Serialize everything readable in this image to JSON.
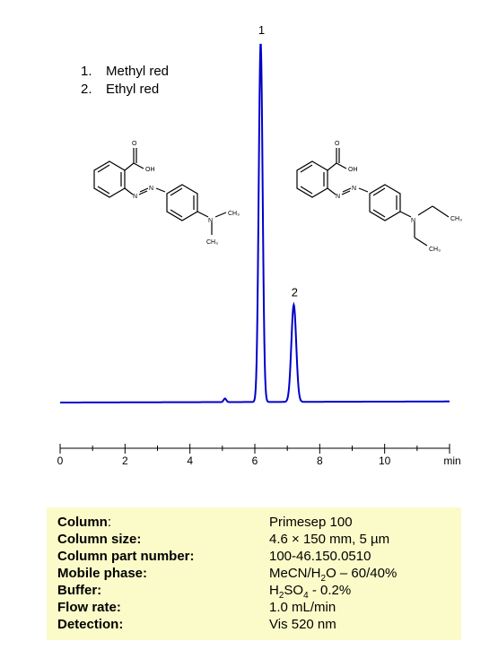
{
  "legend": {
    "items": [
      {
        "num": "1.",
        "label": "Methyl red"
      },
      {
        "num": "2.",
        "label": "Ethyl red"
      }
    ]
  },
  "molecules": {
    "methyl_red": {
      "oh": "OH",
      "o": "O",
      "n1": "N",
      "n2": "N",
      "n3": "N",
      "ch3a": "CH₃",
      "ch3b": "CH₃"
    },
    "ethyl_red": {
      "oh": "OH",
      "o": "O",
      "n1": "N",
      "n2": "N",
      "n3": "N",
      "ch3a": "CH₃",
      "ch3b": "CH₃"
    }
  },
  "chart_data": {
    "type": "line",
    "x_unit": "min",
    "xlim": [
      0,
      12
    ],
    "x_ticks": [
      "0",
      "2",
      "4",
      "6",
      "8",
      "10"
    ],
    "baseline": 0.0,
    "ylim": [
      0,
      1.0
    ],
    "series": [
      {
        "color": "#0000cc",
        "peaks": [
          {
            "label": "",
            "rt": 5.08,
            "height": 0.01,
            "width": 0.04
          },
          {
            "label": "1",
            "rt": 6.18,
            "height": 1.0,
            "width": 0.06
          },
          {
            "label": "2",
            "rt": 7.2,
            "height": 0.27,
            "width": 0.075
          }
        ]
      }
    ]
  },
  "conditions": [
    {
      "key": "Column",
      "suffix": ":",
      "value": "Primesep  100"
    },
    {
      "key": "Column size:",
      "suffix": "",
      "value": "4.6 × 150 mm, 5 µm"
    },
    {
      "key": "Column part number:",
      "suffix": "",
      "value": "100-46.150.0510"
    },
    {
      "key": "Mobile phase:",
      "suffix": "",
      "value": "MeCN/H2O – 60/40%"
    },
    {
      "key": "Buffer:",
      "suffix": "",
      "value": "H2SO4  - 0.2%"
    },
    {
      "key": "Flow rate:",
      "suffix": "",
      "value": "1.0 mL/min"
    },
    {
      "key": "Detection:",
      "suffix": "",
      "value": "Vis 520  nm"
    }
  ]
}
